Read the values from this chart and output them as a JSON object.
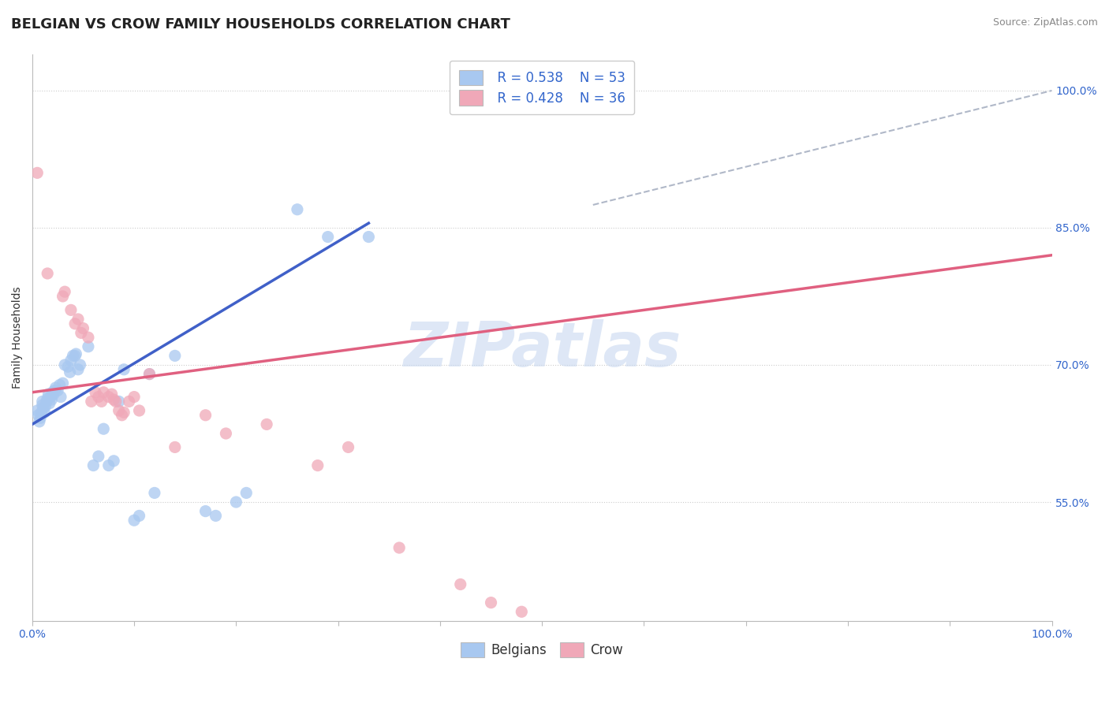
{
  "title": "BELGIAN VS CROW FAMILY HOUSEHOLDS CORRELATION CHART",
  "source": "Source: ZipAtlas.com",
  "ylabel": "Family Households",
  "xlim": [
    0.0,
    1.0
  ],
  "ylim": [
    0.42,
    1.04
  ],
  "yticks": [
    0.55,
    0.7,
    0.85,
    1.0
  ],
  "ytick_labels": [
    "55.0%",
    "70.0%",
    "85.0%",
    "100.0%"
  ],
  "legend_blue_R": "R = 0.538",
  "legend_blue_N": "N = 53",
  "legend_pink_R": "R = 0.428",
  "legend_pink_N": "N = 36",
  "blue_color": "#A8C8F0",
  "pink_color": "#F0A8B8",
  "blue_line_color": "#4060C8",
  "pink_line_color": "#E06080",
  "dashed_line_color": "#B0B8C8",
  "watermark": "ZIPatlas",
  "watermark_color": "#C8D8F0",
  "blue_scatter": [
    [
      0.005,
      0.65
    ],
    [
      0.006,
      0.645
    ],
    [
      0.007,
      0.638
    ],
    [
      0.008,
      0.642
    ],
    [
      0.009,
      0.648
    ],
    [
      0.01,
      0.656
    ],
    [
      0.01,
      0.66
    ],
    [
      0.011,
      0.653
    ],
    [
      0.012,
      0.648
    ],
    [
      0.013,
      0.655
    ],
    [
      0.014,
      0.66
    ],
    [
      0.015,
      0.663
    ],
    [
      0.016,
      0.668
    ],
    [
      0.017,
      0.658
    ],
    [
      0.018,
      0.665
    ],
    [
      0.019,
      0.662
    ],
    [
      0.02,
      0.67
    ],
    [
      0.021,
      0.668
    ],
    [
      0.022,
      0.672
    ],
    [
      0.023,
      0.675
    ],
    [
      0.025,
      0.672
    ],
    [
      0.027,
      0.678
    ],
    [
      0.028,
      0.665
    ],
    [
      0.03,
      0.68
    ],
    [
      0.032,
      0.7
    ],
    [
      0.035,
      0.698
    ],
    [
      0.037,
      0.692
    ],
    [
      0.038,
      0.705
    ],
    [
      0.04,
      0.71
    ],
    [
      0.042,
      0.71
    ],
    [
      0.043,
      0.712
    ],
    [
      0.045,
      0.695
    ],
    [
      0.047,
      0.7
    ],
    [
      0.055,
      0.72
    ],
    [
      0.06,
      0.59
    ],
    [
      0.065,
      0.6
    ],
    [
      0.07,
      0.63
    ],
    [
      0.075,
      0.59
    ],
    [
      0.08,
      0.595
    ],
    [
      0.085,
      0.66
    ],
    [
      0.09,
      0.695
    ],
    [
      0.1,
      0.53
    ],
    [
      0.105,
      0.535
    ],
    [
      0.115,
      0.69
    ],
    [
      0.12,
      0.56
    ],
    [
      0.14,
      0.71
    ],
    [
      0.17,
      0.54
    ],
    [
      0.18,
      0.535
    ],
    [
      0.2,
      0.55
    ],
    [
      0.21,
      0.56
    ],
    [
      0.26,
      0.87
    ],
    [
      0.29,
      0.84
    ],
    [
      0.33,
      0.84
    ]
  ],
  "pink_scatter": [
    [
      0.005,
      0.91
    ],
    [
      0.015,
      0.8
    ],
    [
      0.03,
      0.775
    ],
    [
      0.032,
      0.78
    ],
    [
      0.038,
      0.76
    ],
    [
      0.042,
      0.745
    ],
    [
      0.045,
      0.75
    ],
    [
      0.048,
      0.735
    ],
    [
      0.05,
      0.74
    ],
    [
      0.055,
      0.73
    ],
    [
      0.058,
      0.66
    ],
    [
      0.062,
      0.67
    ],
    [
      0.065,
      0.665
    ],
    [
      0.068,
      0.66
    ],
    [
      0.07,
      0.67
    ],
    [
      0.075,
      0.665
    ],
    [
      0.078,
      0.668
    ],
    [
      0.08,
      0.662
    ],
    [
      0.082,
      0.66
    ],
    [
      0.085,
      0.65
    ],
    [
      0.088,
      0.645
    ],
    [
      0.09,
      0.648
    ],
    [
      0.095,
      0.66
    ],
    [
      0.1,
      0.665
    ],
    [
      0.105,
      0.65
    ],
    [
      0.115,
      0.69
    ],
    [
      0.14,
      0.61
    ],
    [
      0.17,
      0.645
    ],
    [
      0.19,
      0.625
    ],
    [
      0.23,
      0.635
    ],
    [
      0.28,
      0.59
    ],
    [
      0.31,
      0.61
    ],
    [
      0.36,
      0.5
    ],
    [
      0.42,
      0.46
    ],
    [
      0.45,
      0.44
    ],
    [
      0.48,
      0.43
    ]
  ],
  "blue_line": [
    [
      0.0,
      0.635
    ],
    [
      0.33,
      0.855
    ]
  ],
  "pink_line": [
    [
      0.0,
      0.67
    ],
    [
      1.0,
      0.82
    ]
  ],
  "dashed_line": [
    [
      0.55,
      0.875
    ],
    [
      1.0,
      1.0
    ]
  ],
  "title_fontsize": 13,
  "axis_fontsize": 10,
  "tick_fontsize": 10,
  "legend_fontsize": 12,
  "source_fontsize": 9
}
